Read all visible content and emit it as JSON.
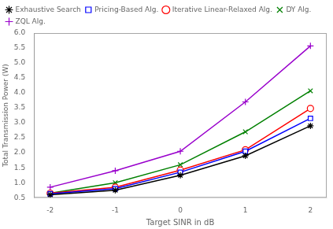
{
  "chart_data": {
    "type": "line",
    "x": [
      -2,
      -1,
      0,
      1,
      2
    ],
    "series": [
      {
        "name": "Exhaustive Search",
        "color": "#000000",
        "marker": "star",
        "values": [
          0.6,
          0.75,
          1.25,
          1.9,
          2.9
        ]
      },
      {
        "name": "Pricing-Based Alg.",
        "color": "#0000FF",
        "marker": "square",
        "values": [
          0.63,
          0.8,
          1.35,
          2.05,
          3.15
        ]
      },
      {
        "name": "Iterative Linear-Relaxed Alg.",
        "color": "#FF0000",
        "marker": "circle",
        "values": [
          0.65,
          0.85,
          1.42,
          2.1,
          3.48
        ]
      },
      {
        "name": "DY Alg.",
        "color": "#008000",
        "marker": "x",
        "values": [
          0.65,
          1.0,
          1.6,
          2.7,
          4.07
        ]
      },
      {
        "name": "ZQL Alg.",
        "color": "#9900CC",
        "marker": "plus",
        "values": [
          0.85,
          1.4,
          2.05,
          3.7,
          5.57
        ]
      }
    ],
    "xlabel": "Target SINR in dB",
    "ylabel": "Total Transmission Power (W)",
    "xlim": [
      -2.25,
      2.25
    ],
    "xticks": [
      -2,
      -1,
      0,
      1,
      2
    ],
    "ylim": [
      0.5,
      6.0
    ],
    "yticks": [
      0.5,
      {
        "value": 1.0,
        "label": "1.0"
      },
      1.5,
      {
        "value": 2.0,
        "label": "2.0"
      },
      2.5,
      {
        "value": 3.0,
        "label": "3.0"
      },
      3.5,
      {
        "value": 4.0,
        "label": "4.0"
      },
      4.5,
      {
        "value": 5.0,
        "label": "5.0"
      },
      5.5,
      {
        "value": 6.0,
        "label": "6.0"
      }
    ],
    "grid": false,
    "legend": "upper left"
  }
}
